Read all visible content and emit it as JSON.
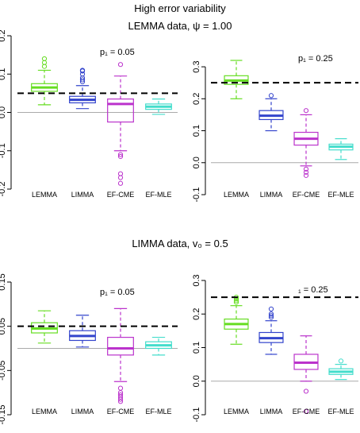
{
  "figure_title": "High error variability",
  "rows": [
    {
      "title": "LEMMA data, ψ = 1.00"
    },
    {
      "title": "LIMMA data, v₀ = 0.5"
    }
  ],
  "colors": {
    "LEMMA": "#66dd22",
    "LIMMA": "#3344cc",
    "EF-CME": "#bb33cc",
    "EF-MLE": "#44ddcc"
  },
  "chart_data": [
    {
      "type": "boxplot",
      "annotation": "p₁ = 0.05",
      "reference_line": 0.05,
      "ylim": [
        -0.2,
        0.2
      ],
      "yticks": [
        "-0.2",
        "-0.1",
        "0.0",
        "0.1",
        "0.2"
      ],
      "ytick_values": [
        -0.2,
        -0.1,
        0,
        0.1,
        0.2
      ],
      "categories": [
        "LEMMA",
        "LIMMA",
        "EF-CME",
        "EF-MLE"
      ],
      "boxes": [
        {
          "name": "LEMMA",
          "whisker_low": 0.02,
          "q1": 0.055,
          "median": 0.065,
          "q3": 0.075,
          "whisker_high": 0.11,
          "outliers": [
            0.12,
            0.13,
            0.14
          ]
        },
        {
          "name": "LIMMA",
          "whisker_low": 0.01,
          "q1": 0.025,
          "median": 0.033,
          "q3": 0.042,
          "whisker_high": 0.07,
          "outliers": [
            0.08,
            0.085,
            0.09,
            0.1,
            0.108,
            0.11
          ]
        },
        {
          "name": "EF-CME",
          "whisker_low": -0.1,
          "q1": -0.025,
          "median": 0.022,
          "q3": 0.035,
          "whisker_high": 0.095,
          "outliers": [
            0.125,
            -0.11,
            -0.115,
            -0.16,
            -0.17,
            -0.185
          ]
        },
        {
          "name": "EF-MLE",
          "whisker_low": -0.005,
          "q1": 0.008,
          "median": 0.015,
          "q3": 0.022,
          "whisker_high": 0.035,
          "outliers": []
        }
      ]
    },
    {
      "type": "boxplot",
      "annotation": "p₁ = 0.25",
      "reference_line": 0.25,
      "ylim": [
        -0.1,
        0.33
      ],
      "yticks": [
        "-0.1",
        "0.0",
        "0.1",
        "0.2",
        "0.3"
      ],
      "ytick_values": [
        -0.1,
        0,
        0.1,
        0.2,
        0.3
      ],
      "categories": [
        "LEMMA",
        "LIMMA",
        "EF-CME",
        "EF-MLE"
      ],
      "boxes": [
        {
          "name": "LEMMA",
          "whisker_low": 0.2,
          "q1": 0.245,
          "median": 0.257,
          "q3": 0.272,
          "whisker_high": 0.32,
          "outliers": []
        },
        {
          "name": "LIMMA",
          "whisker_low": 0.1,
          "q1": 0.135,
          "median": 0.147,
          "q3": 0.163,
          "whisker_high": 0.2,
          "outliers": [
            0.21
          ]
        },
        {
          "name": "EF-CME",
          "whisker_low": -0.01,
          "q1": 0.055,
          "median": 0.075,
          "q3": 0.095,
          "whisker_high": 0.15,
          "outliers": [
            0.163,
            -0.02,
            -0.03,
            -0.04
          ]
        },
        {
          "name": "EF-MLE",
          "whisker_low": 0.01,
          "q1": 0.04,
          "median": 0.05,
          "q3": 0.058,
          "whisker_high": 0.075,
          "outliers": []
        }
      ]
    },
    {
      "type": "boxplot",
      "annotation": "p₁ = 0.05",
      "reference_line": 0.05,
      "ylim": [
        -0.15,
        0.15
      ],
      "yticks": [
        "-0.15",
        "-0.05",
        "0.05",
        "0.15"
      ],
      "ytick_values": [
        -0.15,
        -0.05,
        0.05,
        0.15
      ],
      "categories": [
        "LEMMA",
        "LIMMA",
        "EF-CME",
        "EF-MLE"
      ],
      "boxes": [
        {
          "name": "LEMMA",
          "whisker_low": 0.012,
          "q1": 0.035,
          "median": 0.045,
          "q3": 0.058,
          "whisker_high": 0.085,
          "outliers": []
        },
        {
          "name": "LIMMA",
          "whisker_low": 0.003,
          "q1": 0.018,
          "median": 0.028,
          "q3": 0.04,
          "whisker_high": 0.075,
          "outliers": []
        },
        {
          "name": "EF-CME",
          "whisker_low": -0.075,
          "q1": -0.015,
          "median": 0.0,
          "q3": 0.025,
          "whisker_high": 0.09,
          "outliers": [
            -0.09,
            -0.1,
            -0.105,
            -0.11,
            -0.115,
            -0.12
          ]
        },
        {
          "name": "EF-MLE",
          "whisker_low": -0.015,
          "q1": 0.0,
          "median": 0.007,
          "q3": 0.015,
          "whisker_high": 0.025,
          "outliers": []
        }
      ]
    },
    {
      "type": "boxplot",
      "annotation": "₁ = 0.25",
      "reference_line": 0.25,
      "ylim": [
        -0.1,
        0.3
      ],
      "yticks": [
        "-0.1",
        "0.0",
        "0.1",
        "0.2",
        "0.3"
      ],
      "ytick_values": [
        -0.1,
        0,
        0.1,
        0.2,
        0.3
      ],
      "categories": [
        "LEMMA",
        "LIMMA",
        "EF-CME",
        "EF-MLE"
      ],
      "boxes": [
        {
          "name": "LEMMA",
          "whisker_low": 0.11,
          "q1": 0.155,
          "median": 0.17,
          "q3": 0.185,
          "whisker_high": 0.225,
          "outliers": [
            0.235,
            0.24,
            0.245,
            0.25
          ]
        },
        {
          "name": "LIMMA",
          "whisker_low": 0.08,
          "q1": 0.115,
          "median": 0.128,
          "q3": 0.145,
          "whisker_high": 0.18,
          "outliers": [
            0.19,
            0.195,
            0.2,
            0.215
          ]
        },
        {
          "name": "EF-CME",
          "whisker_low": 0.0,
          "q1": 0.035,
          "median": 0.055,
          "q3": 0.08,
          "whisker_high": 0.135,
          "outliers": [
            -0.03,
            -0.09
          ]
        },
        {
          "name": "EF-MLE",
          "whisker_low": 0.005,
          "q1": 0.02,
          "median": 0.028,
          "q3": 0.037,
          "whisker_high": 0.05,
          "outliers": [
            0.06
          ]
        }
      ]
    }
  ]
}
